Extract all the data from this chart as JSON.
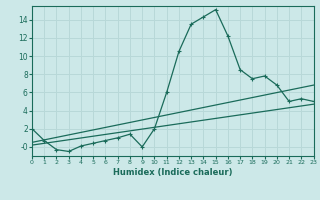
{
  "xlabel": "Humidex (Indice chaleur)",
  "bg_color": "#cce8e8",
  "grid_color": "#b8d8d8",
  "line_color": "#1a6b5a",
  "x_min": 0,
  "x_max": 23,
  "y_min": -1.0,
  "y_max": 15.5,
  "x_ticks": [
    0,
    1,
    2,
    3,
    4,
    5,
    6,
    7,
    8,
    9,
    10,
    11,
    12,
    13,
    14,
    15,
    16,
    17,
    18,
    19,
    20,
    21,
    22,
    23
  ],
  "y_ticks": [
    0,
    2,
    4,
    6,
    8,
    10,
    12,
    14
  ],
  "y_tick_labels": [
    "-0",
    "2",
    "4",
    "6",
    "8",
    "10",
    "12",
    "14"
  ],
  "curve1_x": [
    0,
    1,
    2,
    3,
    4,
    5,
    6,
    7,
    8,
    9,
    10,
    11,
    12,
    13,
    14,
    15,
    16,
    17,
    18,
    19,
    20,
    21,
    22,
    23
  ],
  "curve1_y": [
    2.0,
    0.7,
    -0.3,
    -0.5,
    0.1,
    0.4,
    0.7,
    1.0,
    1.4,
    0.0,
    2.0,
    6.0,
    10.5,
    13.5,
    14.3,
    15.1,
    12.2,
    8.5,
    7.5,
    7.8,
    6.8,
    5.0,
    5.3,
    5.0
  ],
  "curve2_x": [
    0,
    23
  ],
  "curve2_y": [
    0.5,
    6.8
  ],
  "curve3_x": [
    0,
    23
  ],
  "curve3_y": [
    0.2,
    4.7
  ]
}
